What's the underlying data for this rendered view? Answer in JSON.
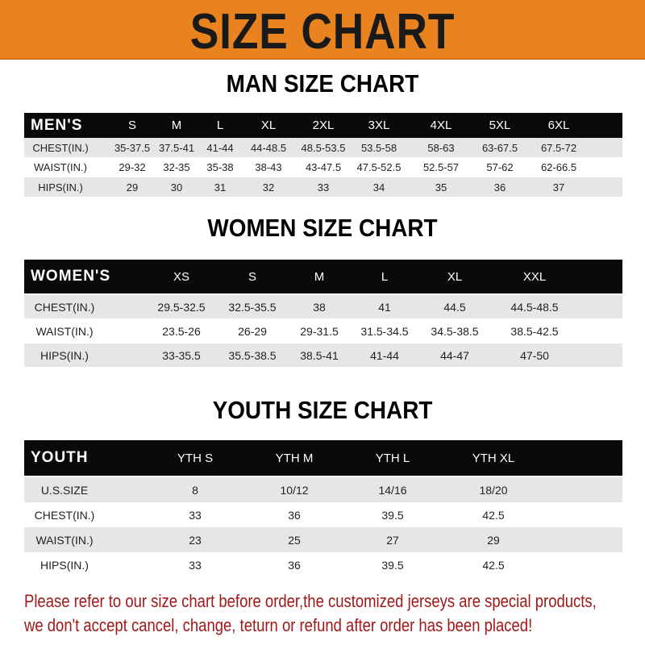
{
  "banner": {
    "title": "SIZE CHART",
    "color": "#e8831f"
  },
  "men": {
    "title": "MAN SIZE CHART",
    "header": [
      "MEN'S",
      "S",
      "M",
      "L",
      "XL",
      "2XL",
      "3XL",
      "4XL",
      "5XL",
      "6XL"
    ],
    "rows": [
      [
        "CHEST(IN.)",
        "35-37.5",
        "37.5-41",
        "41-44",
        "44-48.5",
        "48.5-53.5",
        "53.5-58",
        "58-63",
        "63-67.5",
        "67.5-72"
      ],
      [
        "WAIST(IN.)",
        "29-32",
        "32-35",
        "35-38",
        "38-43",
        "43-47.5",
        "47.5-52.5",
        "52.5-57",
        "57-62",
        "62-66.5"
      ],
      [
        "HIPS(IN.)",
        "29",
        "30",
        "31",
        "32",
        "33",
        "34",
        "35",
        "36",
        "37"
      ]
    ]
  },
  "women": {
    "title": "WOMEN SIZE CHART",
    "header": [
      "WOMEN'S",
      "XS",
      "S",
      "M",
      "L",
      "XL",
      "XXL"
    ],
    "rows": [
      [
        "CHEST(IN.)",
        "29.5-32.5",
        "32.5-35.5",
        "38",
        "41",
        "44.5",
        "44.5-48.5"
      ],
      [
        "WAIST(IN.)",
        "23.5-26",
        "26-29",
        "29-31.5",
        "31.5-34.5",
        "34.5-38.5",
        "38.5-42.5"
      ],
      [
        "HIPS(IN.)",
        "33-35.5",
        "35.5-38.5",
        "38.5-41",
        "41-44",
        "44-47",
        "47-50"
      ]
    ]
  },
  "youth": {
    "title": "YOUTH SIZE CHART",
    "header": [
      "YOUTH",
      "YTH S",
      "YTH M",
      "YTH L",
      "YTH XL"
    ],
    "rows": [
      [
        "U.S.SIZE",
        "8",
        "10/12",
        "14/16",
        "18/20"
      ],
      [
        "CHEST(IN.)",
        "33",
        "36",
        "39.5",
        "42.5"
      ],
      [
        "WAIST(IN.)",
        "23",
        "25",
        "27",
        "29"
      ],
      [
        "HIPS(IN.)",
        "33",
        "36",
        "39.5",
        "42.5"
      ]
    ]
  },
  "notice": {
    "line1": "Please refer to our size chart before order,the customized jerseys are special products,",
    "line2": "we don't accept cancel, change, teturn or refund after order has been placed!",
    "color": "#a01818"
  }
}
